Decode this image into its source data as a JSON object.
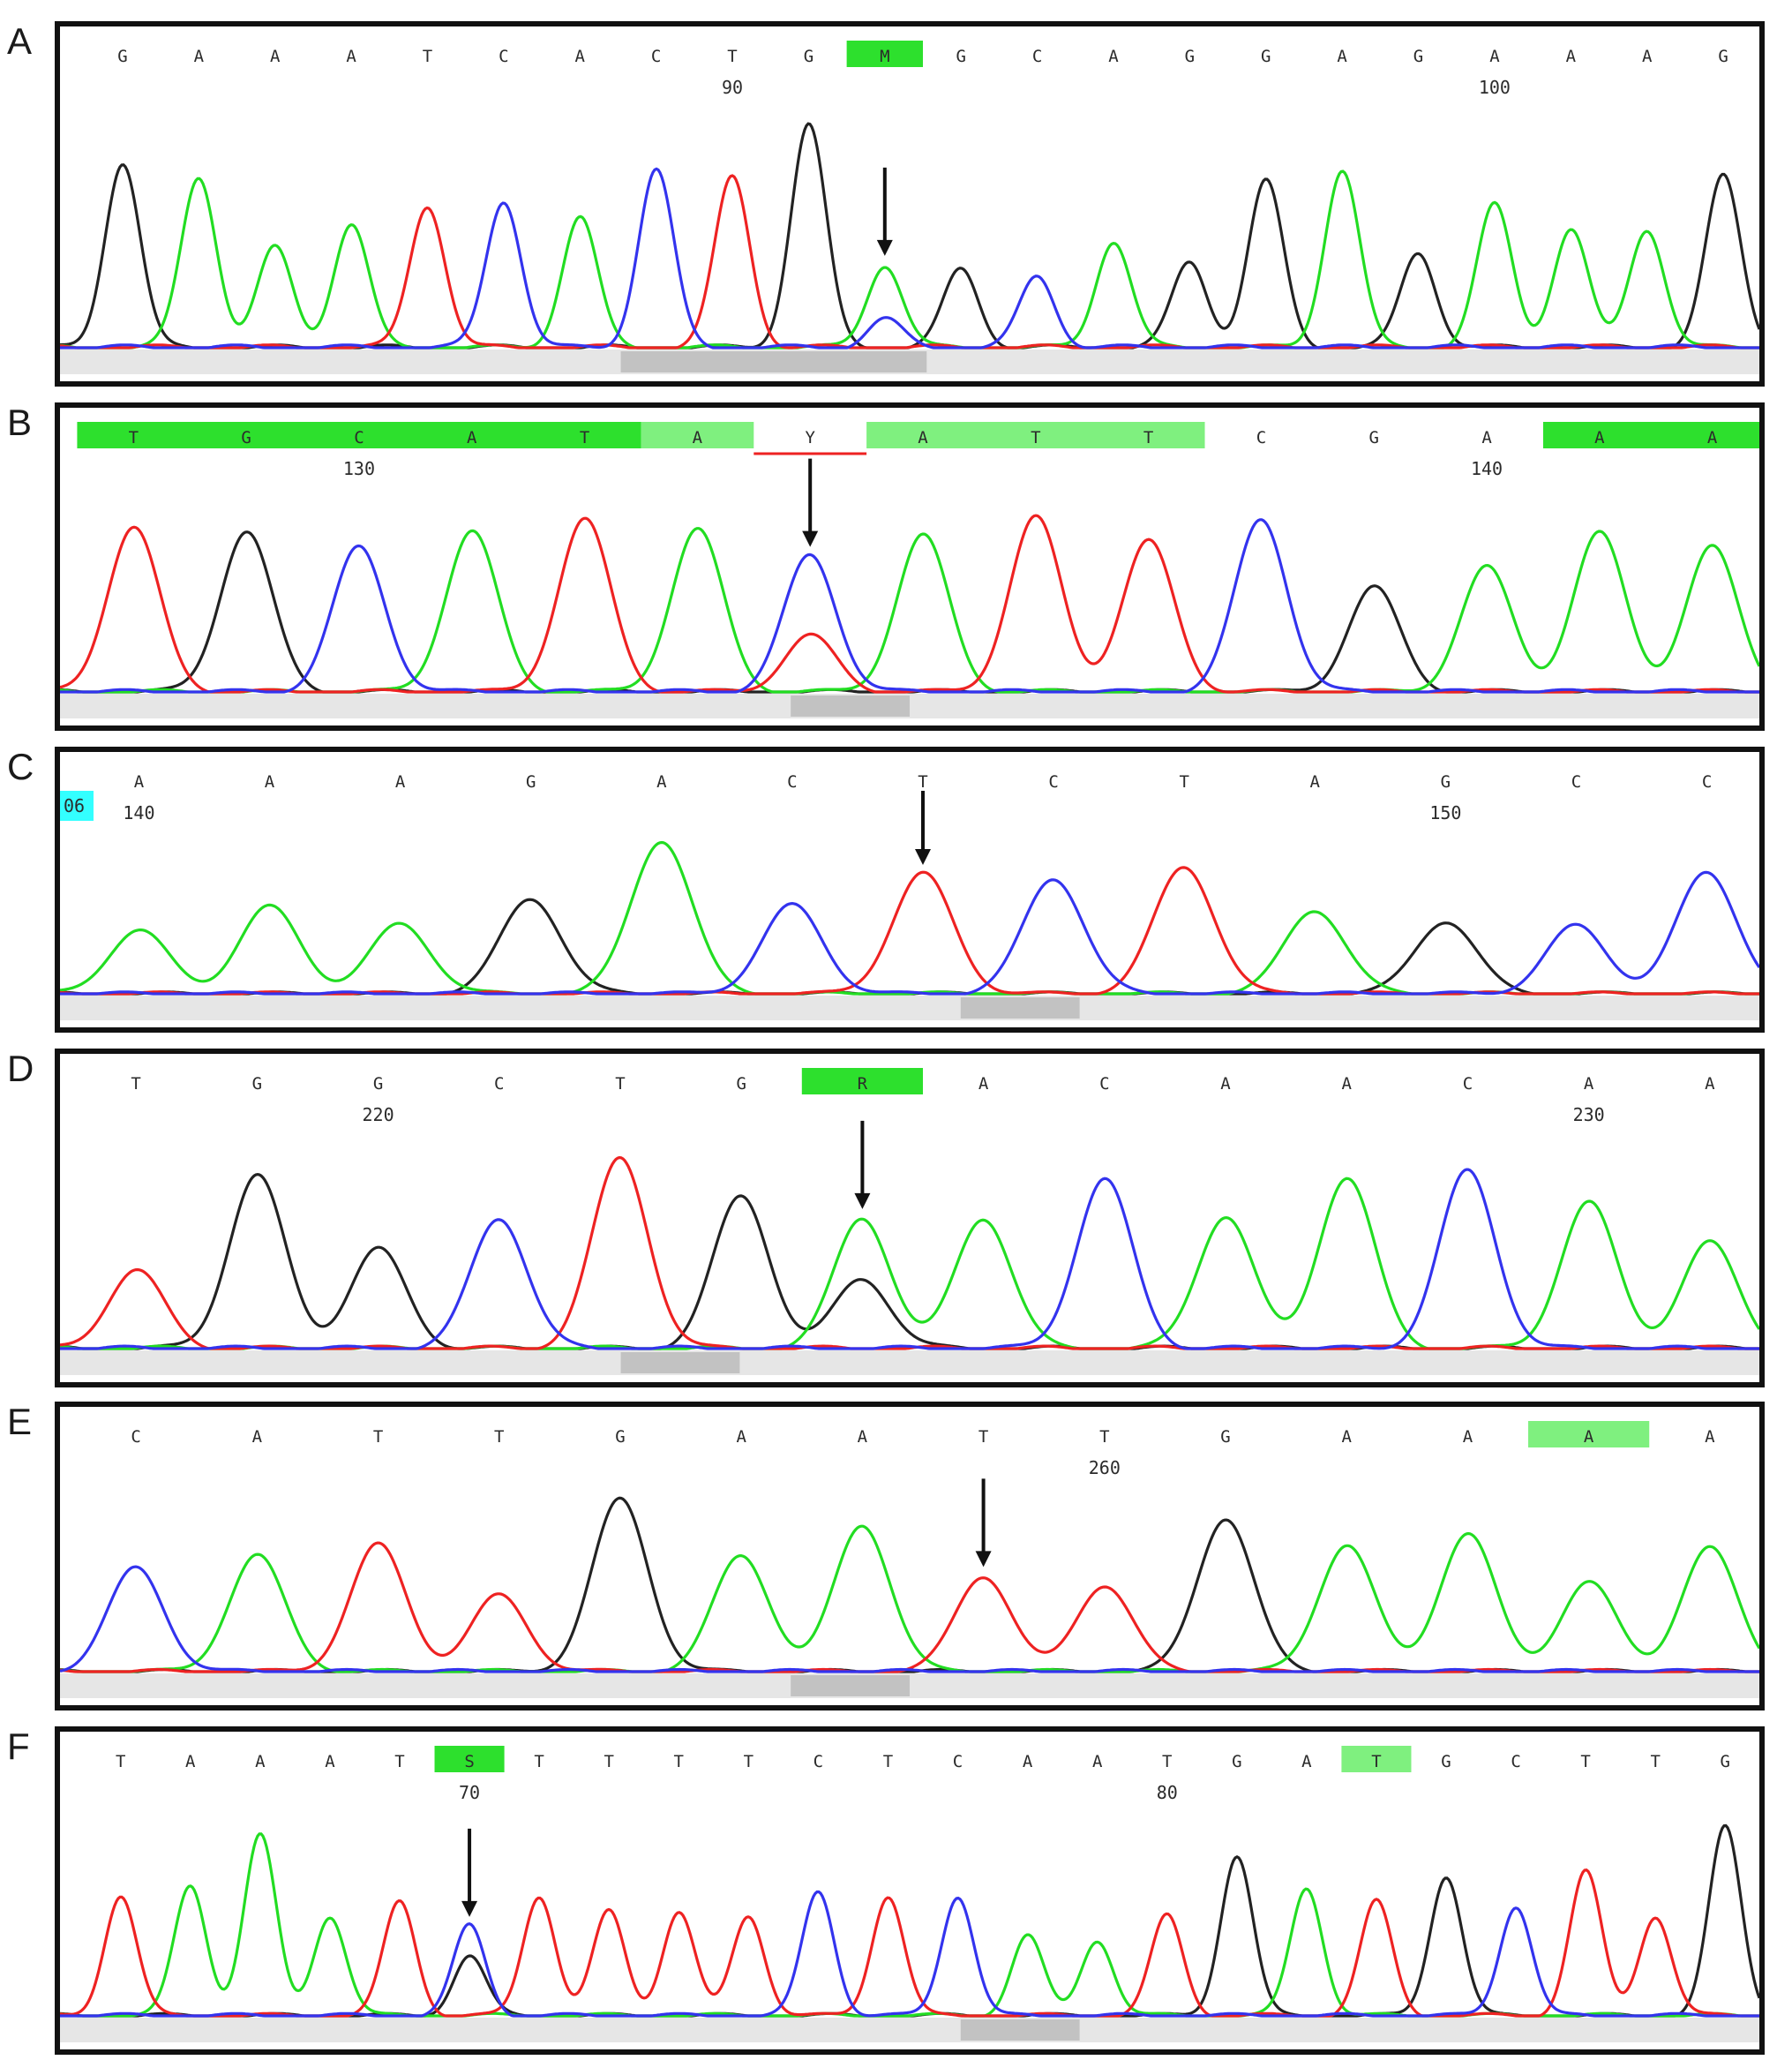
{
  "colors": {
    "A": "#22dd22",
    "C": "#3333ee",
    "G": "#222222",
    "T": "#ee2222",
    "hl_strong": "#2de02d",
    "hl_light": "#7ff07f",
    "hl_cyan": "#33ffff",
    "call_red": "#ee2222",
    "baseline": "#e6e6e6",
    "scroll": "#c2c2c2"
  },
  "panels": [
    {
      "letter": "A",
      "bases": [
        "G",
        "A",
        "A",
        "A",
        "T",
        "C",
        "A",
        "C",
        "T",
        "G",
        "M",
        "G",
        "C",
        "A",
        "G",
        "G",
        "A",
        "G",
        "A",
        "A",
        "A",
        "G"
      ],
      "red_calls": [
        10
      ],
      "highlights": [
        {
          "from": 10,
          "to": 10,
          "style": "strong"
        }
      ],
      "positions": [
        {
          "label": "90",
          "base_index": 8
        },
        {
          "label": "100",
          "base_index": 18
        }
      ],
      "mutation_index": 10,
      "secondary_peak": {
        "index": 10,
        "base": "C",
        "height": 0.12
      },
      "heights": [
        0.78,
        0.72,
        0.42,
        0.52,
        0.6,
        0.62,
        0.55,
        0.75,
        0.72,
        0.94,
        0.35,
        0.33,
        0.3,
        0.45,
        0.36,
        0.7,
        0.75,
        0.4,
        0.6,
        0.5,
        0.5,
        0.72
      ]
    },
    {
      "letter": "B",
      "bases": [
        "T",
        "G",
        "C",
        "A",
        "T",
        "A",
        "Y",
        "A",
        "T",
        "T",
        "C",
        "G",
        "A",
        "A",
        "A"
      ],
      "red_calls": [
        6
      ],
      "highlights": [
        {
          "from": 0,
          "to": 4,
          "style": "strong"
        },
        {
          "from": 5,
          "to": 5,
          "style": "light"
        },
        {
          "from": 6,
          "to": 6,
          "style": "outline"
        },
        {
          "from": 7,
          "to": 9,
          "style": "light"
        },
        {
          "from": 13,
          "to": 14,
          "style": "strong"
        }
      ],
      "positions": [
        {
          "label": "130",
          "base_index": 2
        },
        {
          "label": "140",
          "base_index": 12
        }
      ],
      "mutation_index": 6,
      "secondary_peak": {
        "index": 6,
        "base": "T",
        "height": 0.28
      },
      "heights": [
        0.82,
        0.8,
        0.72,
        0.8,
        0.86,
        0.81,
        0.68,
        0.78,
        0.87,
        0.75,
        0.86,
        0.52,
        0.62,
        0.79,
        0.72
      ]
    },
    {
      "letter": "C",
      "bases": [
        "A",
        "A",
        "A",
        "G",
        "A",
        "C",
        "T",
        "C",
        "T",
        "A",
        "G",
        "C",
        "C"
      ],
      "red_calls": [
        6
      ],
      "highlights": [],
      "corner_tag": "06",
      "positions": [
        {
          "label": "140",
          "base_index": 0
        },
        {
          "label": "150",
          "base_index": 10
        }
      ],
      "mutation_index": 6,
      "secondary_peak": null,
      "heights": [
        0.4,
        0.55,
        0.44,
        0.6,
        0.97,
        0.56,
        0.76,
        0.73,
        0.8,
        0.53,
        0.46,
        0.43,
        0.77
      ]
    },
    {
      "letter": "D",
      "bases": [
        "T",
        "G",
        "G",
        "C",
        "T",
        "G",
        "R",
        "A",
        "C",
        "A",
        "A",
        "C",
        "A",
        "A"
      ],
      "red_calls": [
        6
      ],
      "highlights": [
        {
          "from": 6,
          "to": 6,
          "style": "strong"
        }
      ],
      "positions": [
        {
          "label": "220",
          "base_index": 2
        },
        {
          "label": "230",
          "base_index": 12
        }
      ],
      "mutation_index": 6,
      "secondary_peak": {
        "index": 6,
        "base": "G",
        "height": 0.33
      },
      "heights": [
        0.37,
        0.82,
        0.47,
        0.62,
        0.9,
        0.72,
        0.62,
        0.62,
        0.8,
        0.63,
        0.81,
        0.84,
        0.69,
        0.5
      ]
    },
    {
      "letter": "E",
      "bases": [
        "C",
        "A",
        "T",
        "T",
        "G",
        "A",
        "A",
        "T",
        "T",
        "G",
        "A",
        "A",
        "A",
        "A"
      ],
      "red_calls": [
        7
      ],
      "highlights": [
        {
          "from": 12,
          "to": 12,
          "style": "light"
        }
      ],
      "positions": [
        {
          "label": "260",
          "base_index": 8
        }
      ],
      "mutation_index": 7,
      "secondary_peak": null,
      "heights": [
        0.57,
        0.64,
        0.7,
        0.42,
        0.95,
        0.64,
        0.81,
        0.53,
        0.48,
        0.85,
        0.7,
        0.76,
        0.49,
        0.68
      ]
    },
    {
      "letter": "F",
      "bases": [
        "T",
        "A",
        "A",
        "A",
        "T",
        "S",
        "T",
        "T",
        "T",
        "T",
        "C",
        "T",
        "C",
        "A",
        "A",
        "T",
        "G",
        "A",
        "T",
        "G",
        "C",
        "T",
        "T",
        "G"
      ],
      "red_calls": [
        5
      ],
      "highlights": [
        {
          "from": 5,
          "to": 5,
          "style": "strong"
        },
        {
          "from": 18,
          "to": 18,
          "style": "light"
        }
      ],
      "positions": [
        {
          "label": "70",
          "base_index": 5
        },
        {
          "label": "80",
          "base_index": 15
        }
      ],
      "mutation_index": 5,
      "secondary_peak": {
        "index": 5,
        "base": "G",
        "height": 0.3
      },
      "heights": [
        0.6,
        0.65,
        0.9,
        0.5,
        0.57,
        0.45,
        0.6,
        0.52,
        0.52,
        0.5,
        0.62,
        0.6,
        0.6,
        0.4,
        0.38,
        0.5,
        0.8,
        0.64,
        0.57,
        0.7,
        0.55,
        0.72,
        0.5,
        0.94
      ]
    }
  ]
}
